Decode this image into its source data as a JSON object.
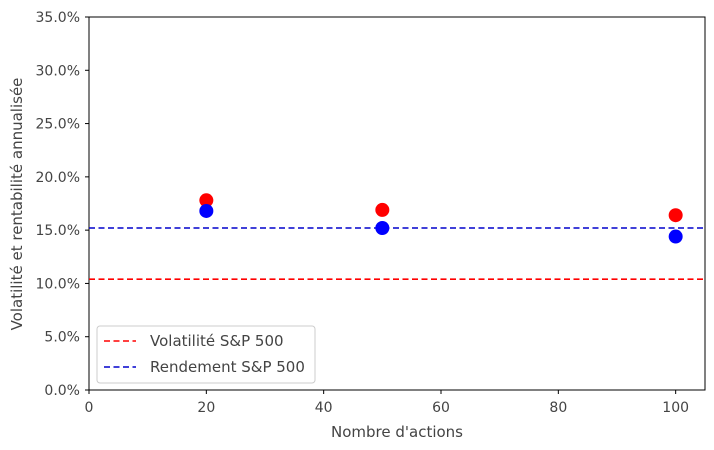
{
  "chart_data": {
    "type": "scatter",
    "title": "",
    "xlabel": "Nombre d'actions",
    "ylabel": "Volatilité et rentabilité annualisée",
    "xlim": [
      0,
      105
    ],
    "ylim": [
      0,
      0.35
    ],
    "x_ticks": [
      0,
      20,
      40,
      60,
      80,
      100
    ],
    "x_tick_labels": [
      "0",
      "20",
      "40",
      "60",
      "80",
      "100"
    ],
    "y_ticks": [
      0,
      0.05,
      0.1,
      0.15,
      0.2,
      0.25,
      0.3,
      0.35
    ],
    "y_tick_labels": [
      "0.0%",
      "5.0%",
      "10.0%",
      "15.0%",
      "20.0%",
      "25.0%",
      "30.0%",
      "35.0%"
    ],
    "grid": false,
    "legend_position": "lower-left",
    "series": [
      {
        "color": "#ff0000",
        "x": [
          20,
          50,
          100
        ],
        "y": [
          0.178,
          0.169,
          0.164
        ]
      },
      {
        "color": "#0000ff",
        "x": [
          20,
          50,
          100
        ],
        "y": [
          0.168,
          0.152,
          0.144
        ]
      }
    ],
    "reference_lines": [
      {
        "name": "Volatilité S&P 500",
        "y": 0.104,
        "color": "#ff0000",
        "style": "dashed"
      },
      {
        "name": "Rendement S&P 500",
        "y": 0.152,
        "color": "#0000cc",
        "style": "dashed"
      }
    ]
  }
}
